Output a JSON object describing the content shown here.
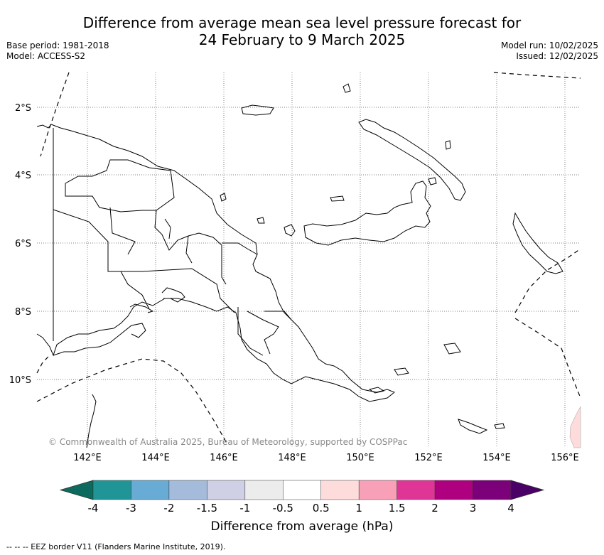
{
  "title_line1": "Difference from average mean sea level pressure forecast for",
  "title_line2": "24 February to 9 March 2025",
  "base_period": "Base period: 1981-2018",
  "model": "Model: ACCESS-S2",
  "model_run": "Model run: 10/02/2025",
  "issued": "Issued: 12/02/2025",
  "copyright": "© Commonwealth of Australia 2025, Bureau of Meteorology, supported by COSPPac",
  "lat_labels": [
    "2°S",
    "4°S",
    "6°S",
    "8°S",
    "10°S"
  ],
  "lon_labels": [
    "142°E",
    "144°E",
    "146°E",
    "148°E",
    "150°E",
    "152°E",
    "154°E",
    "156°E"
  ],
  "colorbar": {
    "title": "Difference from average (hPa)",
    "ticks": [
      "-4",
      "-3",
      "-2",
      "-1.5",
      "-1",
      "-0.5",
      "0.5",
      "1",
      "1.5",
      "2",
      "3",
      "4"
    ],
    "colors": [
      "#0c6b5e",
      "#1f9598",
      "#68abd4",
      "#a5bbdb",
      "#cfcfe6",
      "#ececec",
      "#ffffff",
      "#ffdcdc",
      "#f9a0b9",
      "#df3596",
      "#ae007f",
      "#7c007a",
      "#4a0066"
    ]
  },
  "footnote": "--  --  -- EEZ border V11 (Flanders Marine Institute, 2019)."
}
